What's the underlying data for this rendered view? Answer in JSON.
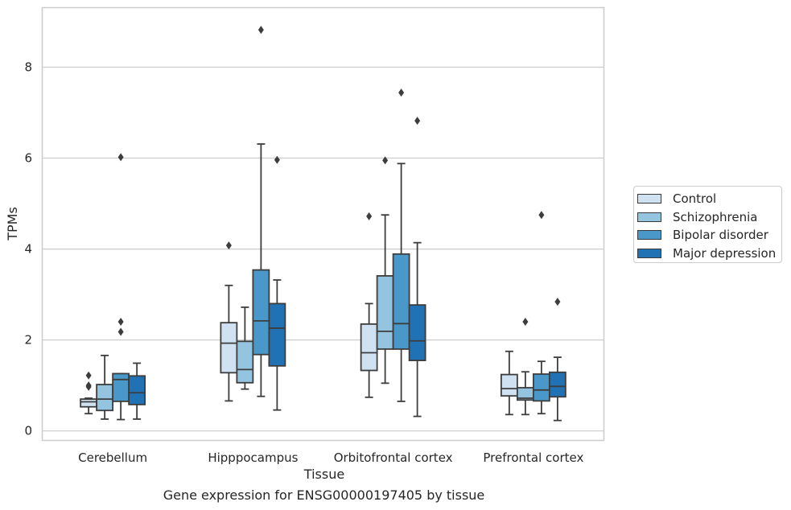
{
  "chart_data": {
    "type": "box",
    "title": "Gene expression for ENSG00000197405 by tissue",
    "xlabel": "Tissue",
    "ylabel": "TPMs",
    "categories": [
      "Cerebellum",
      "Hipppocampus",
      "Orbitofrontal cortex",
      "Prefrontal cortex"
    ],
    "ylim": [
      -0.2,
      9.3
    ],
    "yticks": [
      0,
      2,
      4,
      6,
      8
    ],
    "grid": true,
    "legend_position": "right",
    "series": [
      {
        "name": "Control",
        "color": "#d0e1f2",
        "boxes": [
          {
            "whisker_low": 0.38,
            "q1": 0.53,
            "median": 0.64,
            "q3": 0.7,
            "whisker_high": 0.72,
            "outliers": [
              1.22,
              1.0,
              0.97
            ]
          },
          {
            "whisker_low": 0.66,
            "q1": 1.28,
            "median": 1.93,
            "q3": 2.38,
            "whisker_high": 3.2,
            "outliers": [
              4.08
            ]
          },
          {
            "whisker_low": 0.74,
            "q1": 1.33,
            "median": 1.72,
            "q3": 2.35,
            "whisker_high": 2.8,
            "outliers": [
              4.72
            ]
          },
          {
            "whisker_low": 0.36,
            "q1": 0.77,
            "median": 0.93,
            "q3": 1.24,
            "whisker_high": 1.75,
            "outliers": []
          }
        ]
      },
      {
        "name": "Schizophrenia",
        "color": "#94c4df",
        "boxes": [
          {
            "whisker_low": 0.26,
            "q1": 0.45,
            "median": 0.7,
            "q3": 1.02,
            "whisker_high": 1.66,
            "outliers": []
          },
          {
            "whisker_low": 0.92,
            "q1": 1.06,
            "median": 1.35,
            "q3": 1.97,
            "whisker_high": 2.72,
            "outliers": []
          },
          {
            "whisker_low": 1.05,
            "q1": 1.8,
            "median": 2.19,
            "q3": 3.41,
            "whisker_high": 4.75,
            "outliers": [
              5.95
            ]
          },
          {
            "whisker_low": 0.36,
            "q1": 0.68,
            "median": 0.72,
            "q3": 0.95,
            "whisker_high": 1.3,
            "outliers": [
              2.4
            ]
          }
        ]
      },
      {
        "name": "Bipolar disorder",
        "color": "#4a98c9",
        "boxes": [
          {
            "whisker_low": 0.25,
            "q1": 0.65,
            "median": 1.13,
            "q3": 1.26,
            "whisker_high": 1.26,
            "outliers": [
              2.4,
              2.18,
              6.02
            ]
          },
          {
            "whisker_low": 0.76,
            "q1": 1.68,
            "median": 2.42,
            "q3": 3.54,
            "whisker_high": 6.31,
            "outliers": [
              8.82
            ]
          },
          {
            "whisker_low": 0.65,
            "q1": 1.8,
            "median": 2.36,
            "q3": 3.89,
            "whisker_high": 5.88,
            "outliers": [
              7.44
            ]
          },
          {
            "whisker_low": 0.38,
            "q1": 0.66,
            "median": 0.9,
            "q3": 1.25,
            "whisker_high": 1.53,
            "outliers": [
              4.75
            ]
          }
        ]
      },
      {
        "name": "Major depression",
        "color": "#2171b5",
        "boxes": [
          {
            "whisker_low": 0.26,
            "q1": 0.58,
            "median": 0.84,
            "q3": 1.21,
            "whisker_high": 1.49,
            "outliers": []
          },
          {
            "whisker_low": 0.46,
            "q1": 1.43,
            "median": 2.26,
            "q3": 2.8,
            "whisker_high": 3.32,
            "outliers": [
              5.96
            ]
          },
          {
            "whisker_low": 0.32,
            "q1": 1.55,
            "median": 1.98,
            "q3": 2.77,
            "whisker_high": 4.14,
            "outliers": [
              6.82
            ]
          },
          {
            "whisker_low": 0.23,
            "q1": 0.75,
            "median": 0.98,
            "q3": 1.29,
            "whisker_high": 1.62,
            "outliers": [
              2.84
            ]
          }
        ]
      }
    ]
  }
}
